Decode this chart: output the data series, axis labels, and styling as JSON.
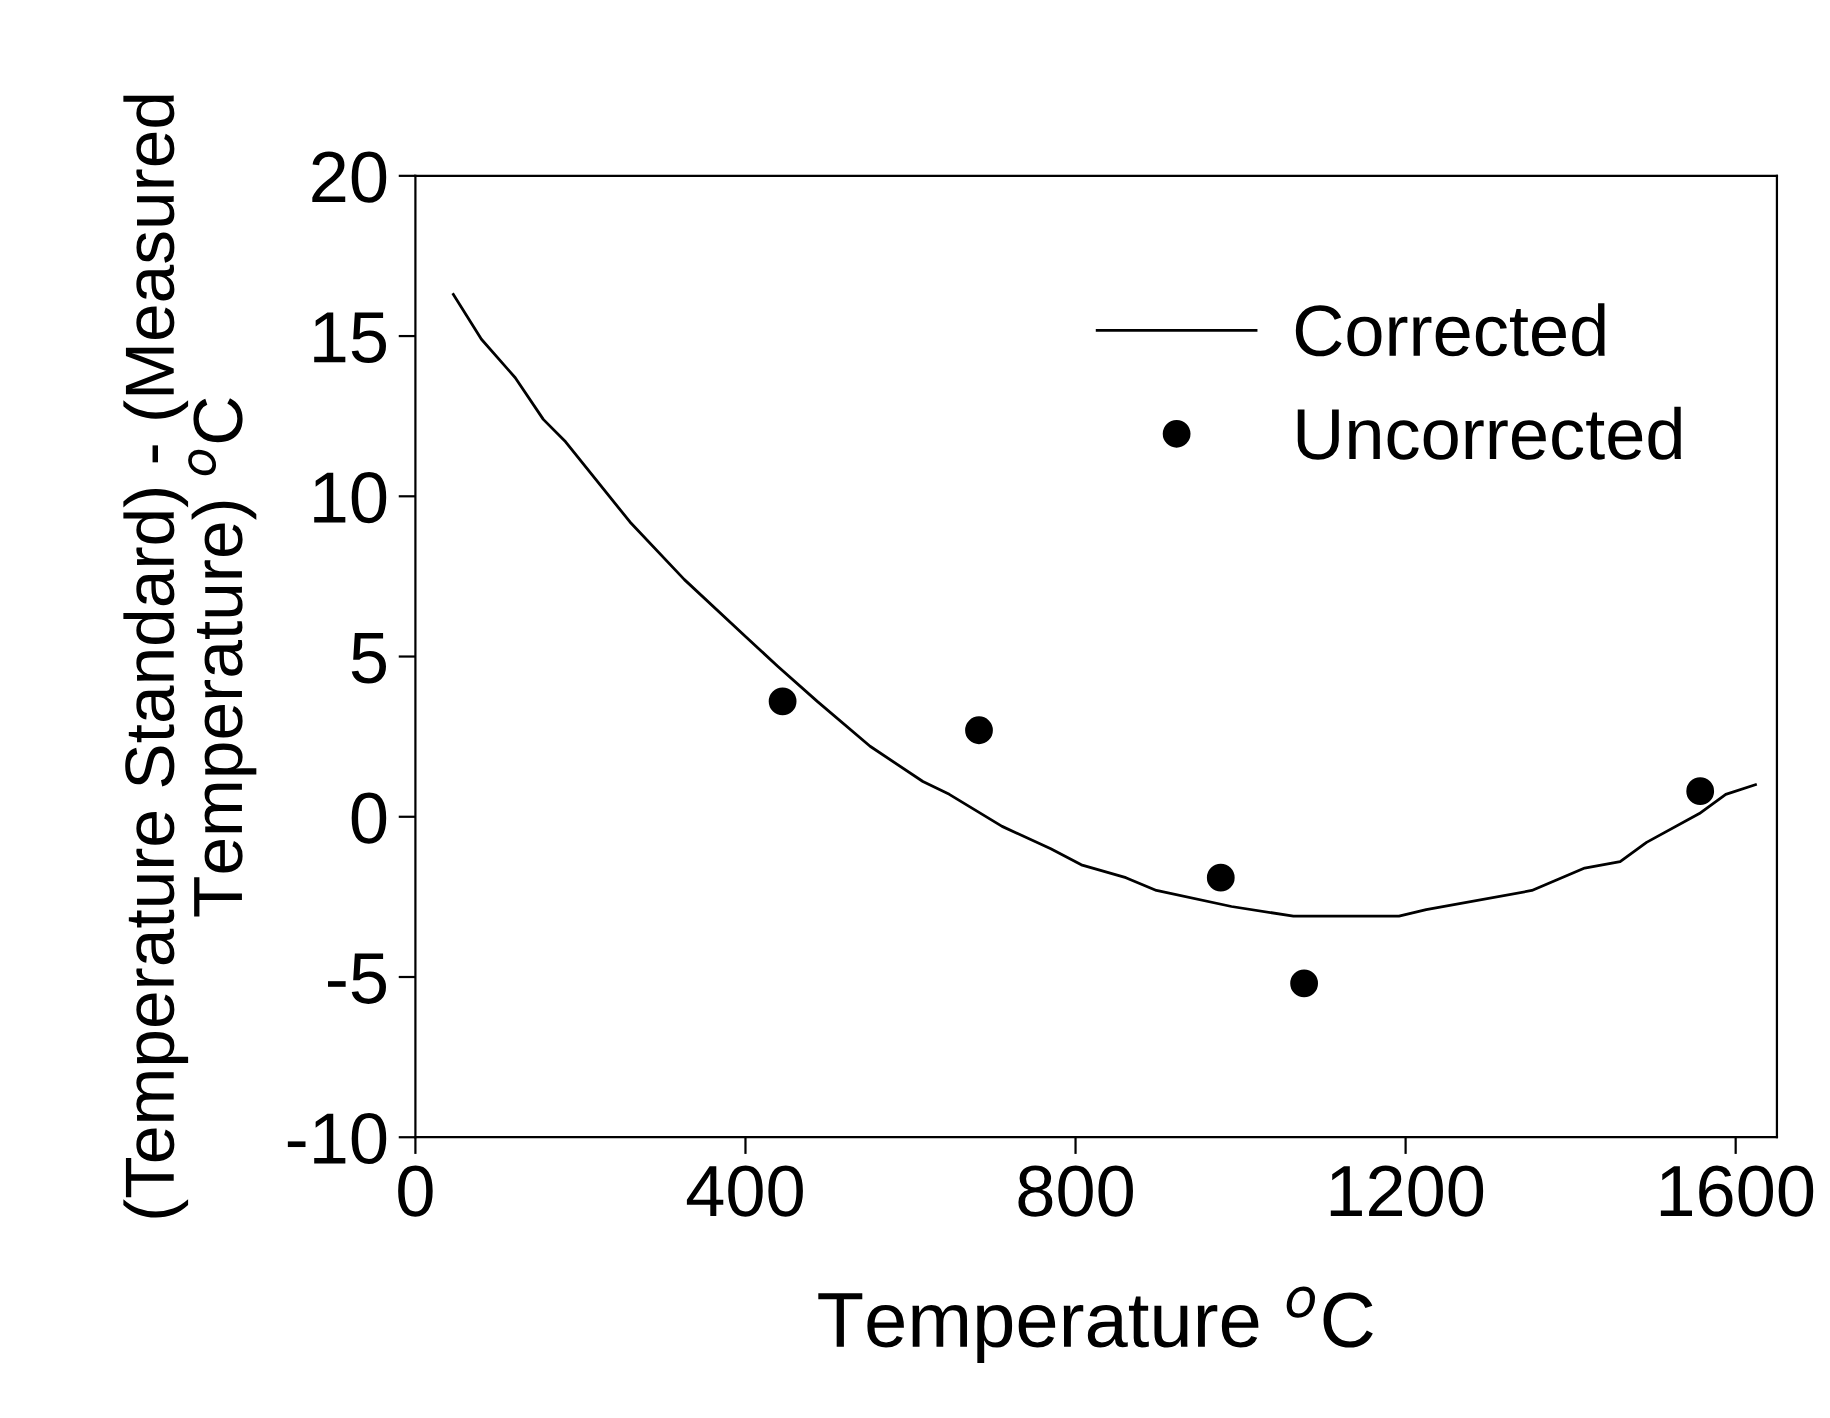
{
  "chart_data": {
    "type": "scatter",
    "xlabel": "Temperature $^{o}$C",
    "ylabel": "(Temperature Standard) - (Measured\nTemperature) $^{o}$C",
    "xlim": [
      0,
      1650
    ],
    "xticks": [
      0,
      400,
      800,
      1200,
      1600
    ],
    "ylim": [
      -10,
      20
    ],
    "yticks": [
      -10,
      -5,
      0,
      5,
      10,
      15,
      20
    ],
    "grid": false,
    "legend": "top right",
    "series": [
      {
        "name": "Corrected",
        "type": "line",
        "color": "#000000",
        "marker": "none",
        "line_style": "solid",
        "x": [
          46,
          80,
          121,
          155,
          182,
          260,
          326,
          401,
          439,
          487,
          551,
          615,
          647,
          711,
          770,
          807,
          861,
          898,
          989,
          1064,
          1192,
          1225,
          1353,
          1417,
          1460,
          1492,
          1556,
          1588,
          1624
        ],
        "values": [
          16.3,
          14.9,
          13.7,
          12.4,
          11.7,
          9.2,
          7.4,
          5.6,
          4.7,
          3.6,
          2.2,
          1.1,
          0.7,
          -0.3,
          -1.0,
          -1.5,
          -1.9,
          -2.3,
          -2.8,
          -3.1,
          -3.1,
          -2.9,
          -2.3,
          -1.6,
          -1.4,
          -0.8,
          0.1,
          0.7,
          1.0
        ]
      },
      {
        "name": "Uncorrected",
        "color": "#000000",
        "marker": "circle",
        "x": [
          445,
          683,
          976,
          1077,
          1557
        ],
        "values": [
          3.6,
          2.7,
          -1.9,
          -5.2,
          0.8
        ]
      }
    ]
  }
}
